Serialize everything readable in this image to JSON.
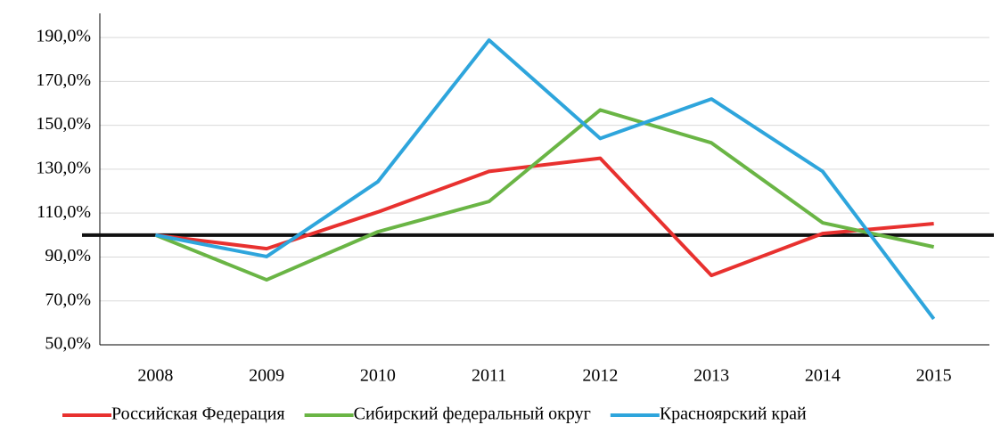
{
  "chart_data": {
    "type": "line",
    "categories": [
      "2008",
      "2009",
      "2010",
      "2011",
      "2012",
      "2013",
      "2014",
      "2015"
    ],
    "series": [
      {
        "name": "Российская Федерация",
        "color": "#e8312f",
        "values": [
          100,
          93.8,
          110.5,
          129,
          135,
          81.6,
          100.7,
          105.2
        ]
      },
      {
        "name": "Сибирский федеральный округ",
        "color": "#6ab545",
        "values": [
          100,
          79.6,
          101.5,
          115.3,
          157,
          142,
          105.6,
          94.6
        ]
      },
      {
        "name": "Красноярский край",
        "color": "#2ea5dc",
        "values": [
          100,
          90.2,
          124.3,
          188.8,
          144,
          162,
          129,
          61.8
        ]
      }
    ],
    "ylim": [
      50,
      201
    ],
    "yticks": [
      {
        "value": 50,
        "label": "50,0%"
      },
      {
        "value": 70,
        "label": "70,0%"
      },
      {
        "value": 90,
        "label": "90,0%"
      },
      {
        "value": 110,
        "label": "110,0%"
      },
      {
        "value": 130,
        "label": "130,0%"
      },
      {
        "value": 150,
        "label": "150,0%"
      },
      {
        "value": 170,
        "label": "170,0%"
      },
      {
        "value": 190,
        "label": "190,0%"
      }
    ],
    "grid": true,
    "reference_line": {
      "value": 100,
      "color": "#111111"
    },
    "legend": "bottom"
  }
}
